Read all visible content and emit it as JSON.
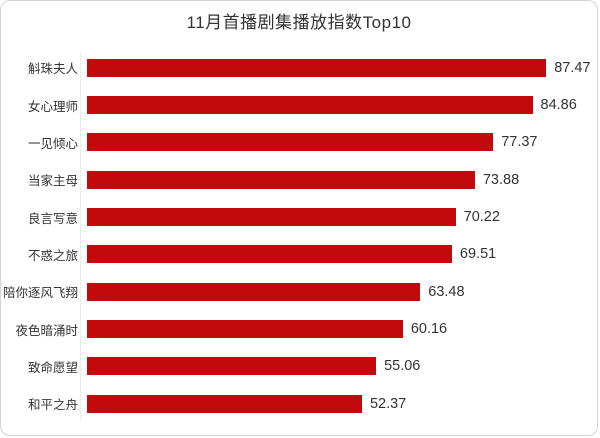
{
  "title": "11月首播剧集播放指数Top10",
  "chart_data": {
    "type": "bar",
    "orientation": "horizontal",
    "title": "11月首播剧集播放指数Top10",
    "categories": [
      "斛珠夫人",
      "女心理师",
      "一见倾心",
      "当家主母",
      "良言写意",
      "不惑之旅",
      "陪你逐风飞翔",
      "夜色暗涌时",
      "致命愿望",
      "和平之舟"
    ],
    "values": [
      87.47,
      84.86,
      77.37,
      73.88,
      70.22,
      69.51,
      63.48,
      60.16,
      55.06,
      52.37
    ],
    "xlabel": "",
    "ylabel": "",
    "xlim": [
      0,
      90
    ],
    "grid": false,
    "legend": "none",
    "value_labels_shown": true,
    "bar_color": "#c2090c"
  },
  "colors": {
    "bar": "#c2090c",
    "text": "#333333",
    "border": "#d4d4d4",
    "axis_line": "#ececec",
    "background": "#ffffff"
  }
}
